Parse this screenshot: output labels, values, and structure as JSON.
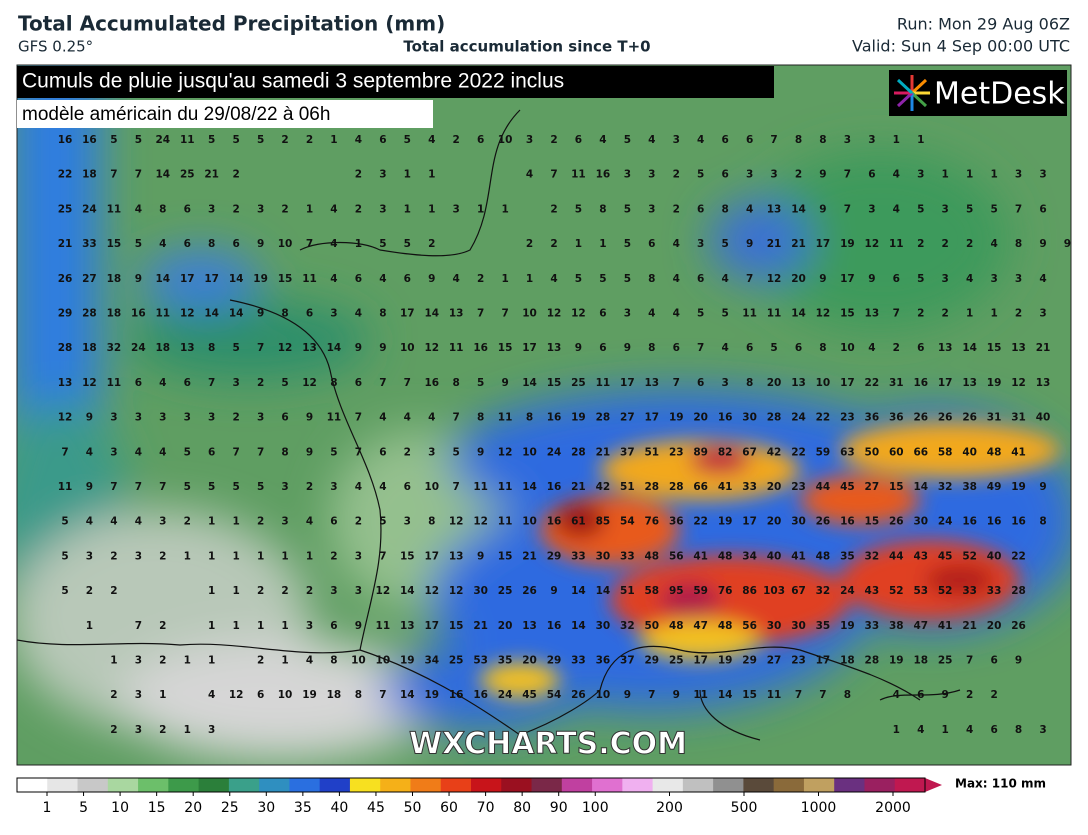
{
  "header": {
    "title": "Total Accumulated Precipitation (mm)",
    "model": "GFS 0.25°",
    "subtitle": "Total accumulation since T+0",
    "run": "Run: Mon 29 Aug 06Z",
    "valid": "Valid: Sun 4 Sep 00:00 UTC"
  },
  "banner": {
    "line1": "Cumuls de pluie jusqu'au samedi 3 septembre 2022 inclus",
    "line2": "modèle américain du 29/08/22 à 06h"
  },
  "logo": "MetDesk",
  "watermark": "WXCHARTS.COM",
  "grid": [
    [
      16,
      16,
      5,
      5,
      24,
      11,
      5,
      5,
      5,
      2,
      2,
      1,
      4,
      6,
      5,
      4,
      2,
      6,
      10,
      3,
      2,
      6,
      4,
      5,
      4,
      3,
      4,
      6,
      6,
      7,
      8,
      8,
      3,
      3,
      1,
      1
    ],
    [
      22,
      18,
      7,
      7,
      14,
      25,
      21,
      2,
      null,
      null,
      null,
      null,
      2,
      3,
      1,
      1,
      null,
      null,
      null,
      4,
      7,
      11,
      16,
      3,
      3,
      2,
      5,
      6,
      3,
      3,
      2,
      9,
      7,
      6,
      4,
      3,
      1,
      1,
      1,
      3,
      3
    ],
    [
      25,
      24,
      11,
      4,
      8,
      6,
      3,
      2,
      3,
      2,
      1,
      4,
      2,
      3,
      1,
      1,
      3,
      1,
      1,
      null,
      2,
      5,
      8,
      5,
      3,
      2,
      6,
      8,
      4,
      13,
      14,
      9,
      7,
      3,
      4,
      5,
      3,
      5,
      5,
      7,
      6
    ],
    [
      21,
      33,
      15,
      5,
      4,
      6,
      8,
      6,
      9,
      10,
      7,
      4,
      1,
      5,
      5,
      2,
      null,
      null,
      null,
      2,
      2,
      1,
      1,
      5,
      6,
      4,
      3,
      5,
      9,
      21,
      21,
      17,
      19,
      12,
      11,
      2,
      2,
      2,
      4,
      8,
      9,
      9
    ],
    [
      26,
      27,
      18,
      9,
      14,
      17,
      17,
      14,
      19,
      15,
      11,
      4,
      6,
      4,
      6,
      9,
      4,
      2,
      1,
      1,
      4,
      5,
      5,
      5,
      8,
      4,
      6,
      4,
      7,
      12,
      20,
      9,
      17,
      9,
      6,
      5,
      3,
      4,
      3,
      3,
      4
    ],
    [
      29,
      28,
      18,
      16,
      11,
      12,
      14,
      14,
      9,
      8,
      6,
      3,
      4,
      8,
      17,
      14,
      13,
      7,
      7,
      10,
      12,
      12,
      6,
      3,
      4,
      4,
      5,
      5,
      11,
      11,
      14,
      12,
      15,
      13,
      7,
      2,
      2,
      1,
      1,
      2,
      3
    ],
    [
      28,
      18,
      32,
      24,
      18,
      13,
      8,
      5,
      7,
      12,
      13,
      14,
      9,
      9,
      10,
      12,
      11,
      16,
      15,
      17,
      13,
      9,
      6,
      9,
      8,
      6,
      7,
      4,
      6,
      5,
      6,
      8,
      10,
      4,
      2,
      6,
      13,
      14,
      15,
      13,
      21
    ],
    [
      13,
      12,
      11,
      6,
      4,
      6,
      7,
      3,
      2,
      5,
      12,
      8,
      6,
      7,
      7,
      16,
      8,
      5,
      9,
      14,
      15,
      25,
      11,
      17,
      13,
      7,
      6,
      3,
      8,
      20,
      13,
      10,
      17,
      22,
      31,
      16,
      17,
      13,
      19,
      12,
      13
    ],
    [
      12,
      9,
      3,
      3,
      3,
      3,
      3,
      2,
      3,
      6,
      9,
      11,
      7,
      4,
      4,
      4,
      7,
      8,
      11,
      8,
      16,
      19,
      28,
      27,
      17,
      19,
      20,
      16,
      30,
      28,
      24,
      22,
      23,
      36,
      36,
      26,
      26,
      26,
      31,
      31,
      40
    ],
    [
      7,
      4,
      3,
      4,
      4,
      5,
      6,
      7,
      7,
      8,
      9,
      5,
      7,
      6,
      2,
      3,
      5,
      9,
      12,
      10,
      24,
      28,
      21,
      37,
      51,
      23,
      89,
      82,
      67,
      42,
      22,
      59,
      63,
      50,
      60,
      66,
      58,
      40,
      48,
      41
    ],
    [
      11,
      9,
      7,
      7,
      7,
      5,
      5,
      5,
      5,
      3,
      2,
      3,
      4,
      4,
      6,
      10,
      7,
      11,
      11,
      14,
      16,
      21,
      42,
      51,
      28,
      28,
      66,
      41,
      33,
      20,
      23,
      44,
      45,
      27,
      15,
      14,
      32,
      38,
      49,
      19,
      9
    ],
    [
      5,
      4,
      4,
      4,
      3,
      2,
      1,
      1,
      2,
      3,
      4,
      6,
      2,
      5,
      3,
      8,
      12,
      12,
      11,
      10,
      16,
      61,
      85,
      54,
      76,
      36,
      22,
      19,
      17,
      20,
      30,
      26,
      16,
      15,
      26,
      30,
      24,
      16,
      16,
      16,
      8
    ],
    [
      5,
      3,
      2,
      3,
      2,
      1,
      1,
      1,
      1,
      1,
      1,
      2,
      3,
      7,
      15,
      17,
      13,
      9,
      15,
      21,
      29,
      33,
      30,
      33,
      48,
      56,
      41,
      48,
      34,
      40,
      41,
      48,
      35,
      32,
      44,
      43,
      45,
      52,
      40,
      22
    ],
    [
      5,
      2,
      2,
      null,
      null,
      null,
      1,
      1,
      2,
      2,
      2,
      3,
      3,
      12,
      14,
      12,
      12,
      30,
      25,
      26,
      9,
      14,
      14,
      51,
      58,
      95,
      59,
      76,
      86,
      103,
      67,
      32,
      24,
      43,
      52,
      53,
      52,
      33,
      33,
      28
    ],
    [
      null,
      1,
      null,
      7,
      2,
      null,
      1,
      1,
      1,
      1,
      3,
      6,
      9,
      11,
      13,
      17,
      15,
      21,
      20,
      13,
      16,
      14,
      30,
      32,
      50,
      48,
      47,
      48,
      56,
      30,
      30,
      35,
      19,
      33,
      38,
      47,
      41,
      21,
      20,
      26
    ],
    [
      null,
      null,
      1,
      3,
      2,
      1,
      1,
      null,
      2,
      1,
      4,
      8,
      10,
      10,
      19,
      34,
      25,
      53,
      35,
      20,
      29,
      33,
      36,
      37,
      29,
      25,
      17,
      19,
      29,
      27,
      23,
      17,
      18,
      28,
      19,
      18,
      25,
      7,
      6,
      9
    ],
    [
      null,
      null,
      2,
      3,
      1,
      null,
      4,
      12,
      6,
      10,
      19,
      18,
      8,
      7,
      14,
      19,
      16,
      16,
      24,
      45,
      54,
      26,
      10,
      9,
      7,
      9,
      11,
      14,
      15,
      11,
      7,
      7,
      8,
      null,
      4,
      6,
      9,
      2,
      2
    ],
    [
      null,
      null,
      2,
      3,
      2,
      1,
      3,
      null,
      null,
      null,
      null,
      null,
      null,
      null,
      null,
      null,
      null,
      null,
      null,
      null,
      null,
      null,
      null,
      null,
      null,
      null,
      null,
      null,
      null,
      null,
      null,
      null,
      null,
      null,
      1,
      4,
      1,
      4,
      6,
      8,
      3
    ]
  ],
  "colorbar": {
    "ticks": [
      1,
      5,
      10,
      15,
      20,
      25,
      30,
      35,
      40,
      45,
      50,
      60,
      70,
      80,
      90,
      100,
      200,
      500,
      1000,
      2000
    ],
    "max_label": "Max: 110 mm"
  }
}
